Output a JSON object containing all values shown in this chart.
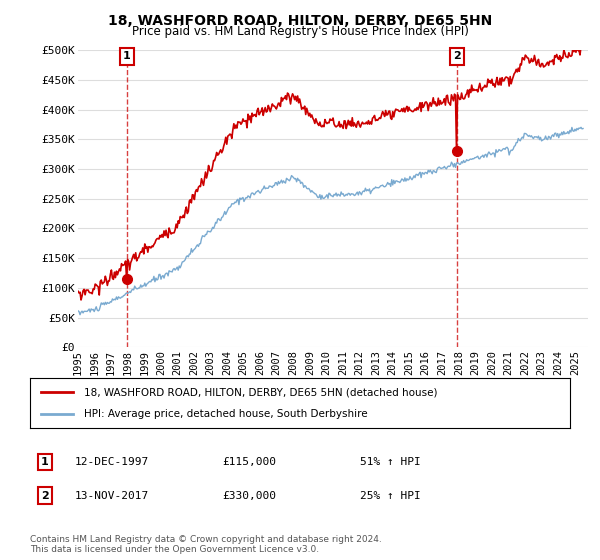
{
  "title": "18, WASHFORD ROAD, HILTON, DERBY, DE65 5HN",
  "subtitle": "Price paid vs. HM Land Registry's House Price Index (HPI)",
  "ylim": [
    0,
    500000
  ],
  "yticks": [
    0,
    50000,
    100000,
    150000,
    200000,
    250000,
    300000,
    350000,
    400000,
    450000,
    500000
  ],
  "ytick_labels": [
    "£0",
    "£50K",
    "£100K",
    "£150K",
    "£200K",
    "£250K",
    "£300K",
    "£350K",
    "£400K",
    "£450K",
    "£500K"
  ],
  "x_start_year": 1995,
  "x_end_year": 2025,
  "sale1_date": "12-DEC-1997",
  "sale1_price": 115000,
  "sale1_x": 1997.958,
  "sale1_label": "51% ↑ HPI",
  "sale1_marker_num": "1",
  "sale2_date": "13-NOV-2017",
  "sale2_price": 330000,
  "sale2_x": 2017.875,
  "sale2_label": "25% ↑ HPI",
  "sale2_marker_num": "2",
  "property_color": "#cc0000",
  "hpi_color": "#7aaad0",
  "dashed_line_color": "#cc0000",
  "legend_property": "18, WASHFORD ROAD, HILTON, DERBY, DE65 5HN (detached house)",
  "legend_hpi": "HPI: Average price, detached house, South Derbyshire",
  "footer": "Contains HM Land Registry data © Crown copyright and database right 2024.\nThis data is licensed under the Open Government Licence v3.0.",
  "background_color": "#ffffff",
  "grid_color": "#dddddd"
}
